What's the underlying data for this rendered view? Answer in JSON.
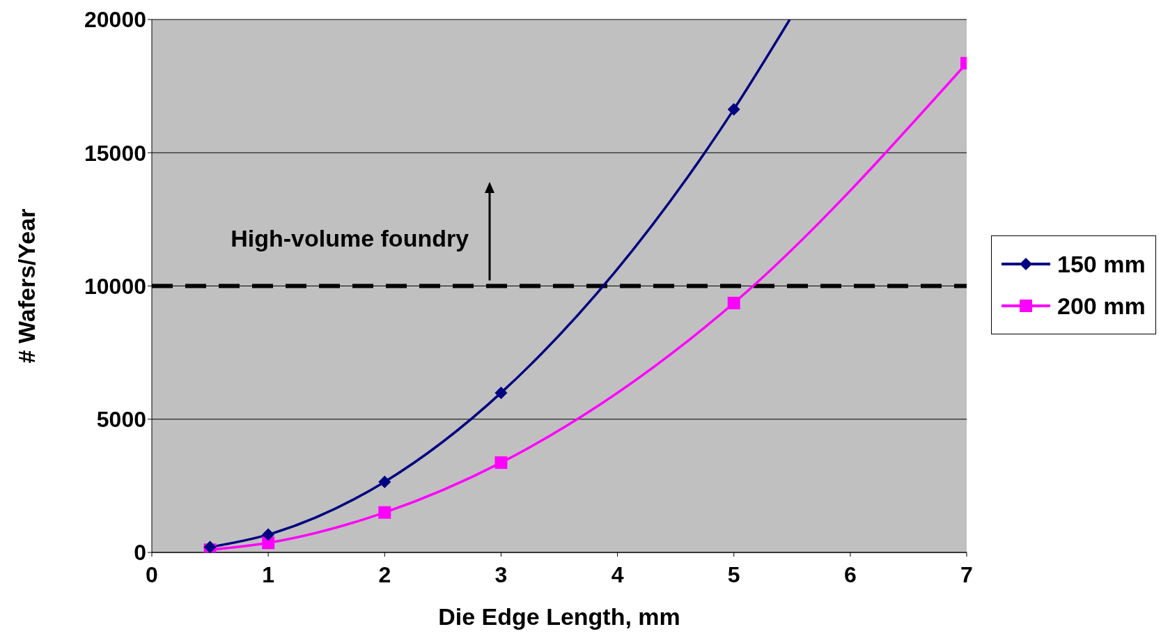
{
  "chart_data": {
    "type": "line",
    "xlabel": "Die Edge Length, mm",
    "ylabel": "# Wafers/Year",
    "series": [
      {
        "name": "150 mm",
        "color": "#000080",
        "marker": "diamond",
        "x": [
          0.5,
          1,
          2,
          3,
          5,
          5.48
        ],
        "values": [
          200,
          670,
          2650,
          5990,
          16630,
          20000
        ]
      },
      {
        "name": "200 mm",
        "color": "#ff00ff",
        "marker": "square",
        "x": [
          0.5,
          1,
          2,
          3,
          5,
          7
        ],
        "values": [
          100,
          360,
          1500,
          3370,
          9360,
          18360
        ]
      }
    ],
    "xlim": [
      0,
      7
    ],
    "xticks": [
      0,
      1,
      2,
      3,
      4,
      5,
      6,
      7
    ],
    "ylim": [
      0,
      20000
    ],
    "yticks": [
      0,
      5000,
      10000,
      15000,
      20000
    ],
    "grid": "y",
    "legend": "right",
    "line_style": "solid",
    "ref_lines": [
      {
        "axis": "y",
        "value": 10000,
        "color": "#000000",
        "line_style": "dashed"
      }
    ],
    "annotations": [
      "High-volume foundry"
    ]
  }
}
